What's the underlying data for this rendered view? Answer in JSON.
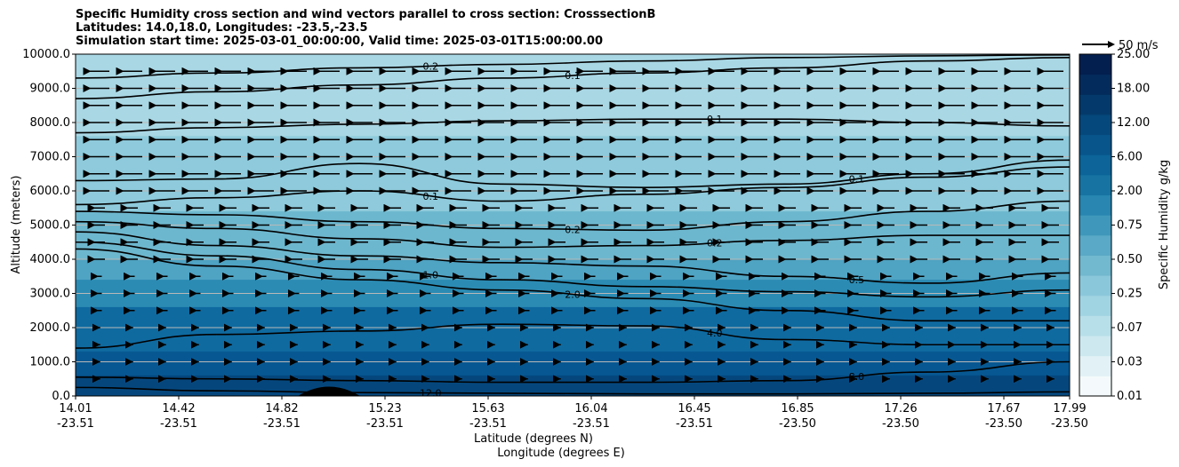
{
  "figure": {
    "title_lines": [
      "Specific Humidity cross section and wind vectors parallel to cross section: CrosssectionB",
      "Latitudes: 14.0,18.0, Longitudes: -23.5,-23.5",
      "Simulation start time: 2025-03-01_00:00:00, Valid time: 2025-03-01T15:00:00.00"
    ],
    "quiver_key_label": "50 m/s"
  },
  "chart_data": {
    "type": "contour_cross_section",
    "ylabel": "Altitude (meters)",
    "xlabel_line1": "Latitude (degrees N)",
    "xlabel_line2": "Longitude (degrees E)",
    "ylim": [
      0,
      10000
    ],
    "yticks": [
      "0.0",
      "1000.0",
      "2000.0",
      "3000.0",
      "4000.0",
      "5000.0",
      "6000.0",
      "7000.0",
      "8000.0",
      "9000.0",
      "10000.0"
    ],
    "xticks": [
      {
        "lat": "14.01",
        "lon": "-23.51"
      },
      {
        "lat": "14.42",
        "lon": "-23.51"
      },
      {
        "lat": "14.82",
        "lon": "-23.51"
      },
      {
        "lat": "15.23",
        "lon": "-23.51"
      },
      {
        "lat": "15.63",
        "lon": "-23.51"
      },
      {
        "lat": "16.04",
        "lon": "-23.51"
      },
      {
        "lat": "16.45",
        "lon": "-23.51"
      },
      {
        "lat": "16.85",
        "lon": "-23.50"
      },
      {
        "lat": "17.26",
        "lon": "-23.50"
      },
      {
        "lat": "17.67",
        "lon": "-23.50"
      },
      {
        "lat": "17.99",
        "lon": "-23.50"
      }
    ],
    "colorbar": {
      "label": "Specific Humidity g/kg",
      "ticks": [
        "0.01",
        "0.03",
        "0.07",
        "0.25",
        "0.50",
        "0.75",
        "2.00",
        "6.00",
        "12.00",
        "18.00",
        "25.00"
      ],
      "colors": [
        "#f4fafb",
        "#e2f1f5",
        "#cde8ef",
        "#b7dfe9",
        "#a1d4e2",
        "#8bc7da",
        "#72b8cf",
        "#5aa9c6",
        "#3f98bb",
        "#2886b0",
        "#1774a2",
        "#0c6498",
        "#07558b",
        "#05487c",
        "#043a6b",
        "#032c5c",
        "#021f4f"
      ]
    },
    "bands": [
      {
        "top_m": 10000,
        "color": "#a9d7e4"
      },
      {
        "top_m": 7600,
        "color": "#8ecadb"
      },
      {
        "top_m": 5400,
        "color": "#6db7ce"
      },
      {
        "top_m": 4000,
        "color": "#4fa3c3"
      },
      {
        "top_m": 3400,
        "color": "#2b8bb3"
      },
      {
        "top_m": 2600,
        "color": "#0f6aa0"
      },
      {
        "top_m": 1300,
        "color": "#075892"
      },
      {
        "top_m": 600,
        "color": "#05477d"
      }
    ],
    "contours": [
      {
        "level": "0.2",
        "y_m": [
          9300,
          9450,
          9600,
          9700,
          9800,
          9900,
          9950,
          9980
        ]
      },
      {
        "level": "0.1",
        "y_m": [
          8700,
          8900,
          9100,
          9300,
          9450,
          9600,
          9800,
          9900
        ]
      },
      {
        "level": "0.1",
        "y_m": [
          7700,
          7850,
          7950,
          8050,
          8100,
          8100,
          8000,
          7900
        ]
      },
      {
        "level": "0.1",
        "y_m": [
          6300,
          6350,
          6800,
          6200,
          6100,
          6200,
          6500,
          6900
        ]
      },
      {
        "level": "0.1",
        "y_m": [
          5600,
          5800,
          6000,
          5700,
          5900,
          6100,
          6400,
          6700
        ]
      },
      {
        "level": "0.2",
        "y_m": [
          5400,
          5300,
          5100,
          4900,
          4850,
          5100,
          5400,
          5700
        ]
      },
      {
        "level": "0.2",
        "y_m": [
          5100,
          4900,
          4600,
          4350,
          4400,
          4550,
          4700,
          4700
        ]
      },
      {
        "level": "0.5",
        "y_m": [
          4800,
          4400,
          4100,
          3900,
          3800,
          3500,
          3300,
          3600
        ]
      },
      {
        "level": "1.0",
        "y_m": [
          4500,
          4100,
          3700,
          3400,
          3200,
          3050,
          2900,
          3100
        ]
      },
      {
        "level": "2.0",
        "y_m": [
          4300,
          3800,
          3400,
          3100,
          2850,
          2500,
          2200,
          2200
        ]
      },
      {
        "level": "4.0",
        "y_m": [
          1400,
          1800,
          1900,
          2100,
          2050,
          1650,
          1500,
          1500
        ]
      },
      {
        "level": "8.0",
        "y_m": [
          550,
          500,
          450,
          400,
          400,
          450,
          700,
          1000
        ]
      },
      {
        "level": "12.0",
        "y_m": [
          250,
          150,
          100,
          80,
          60,
          60,
          80,
          120
        ]
      }
    ]
  }
}
